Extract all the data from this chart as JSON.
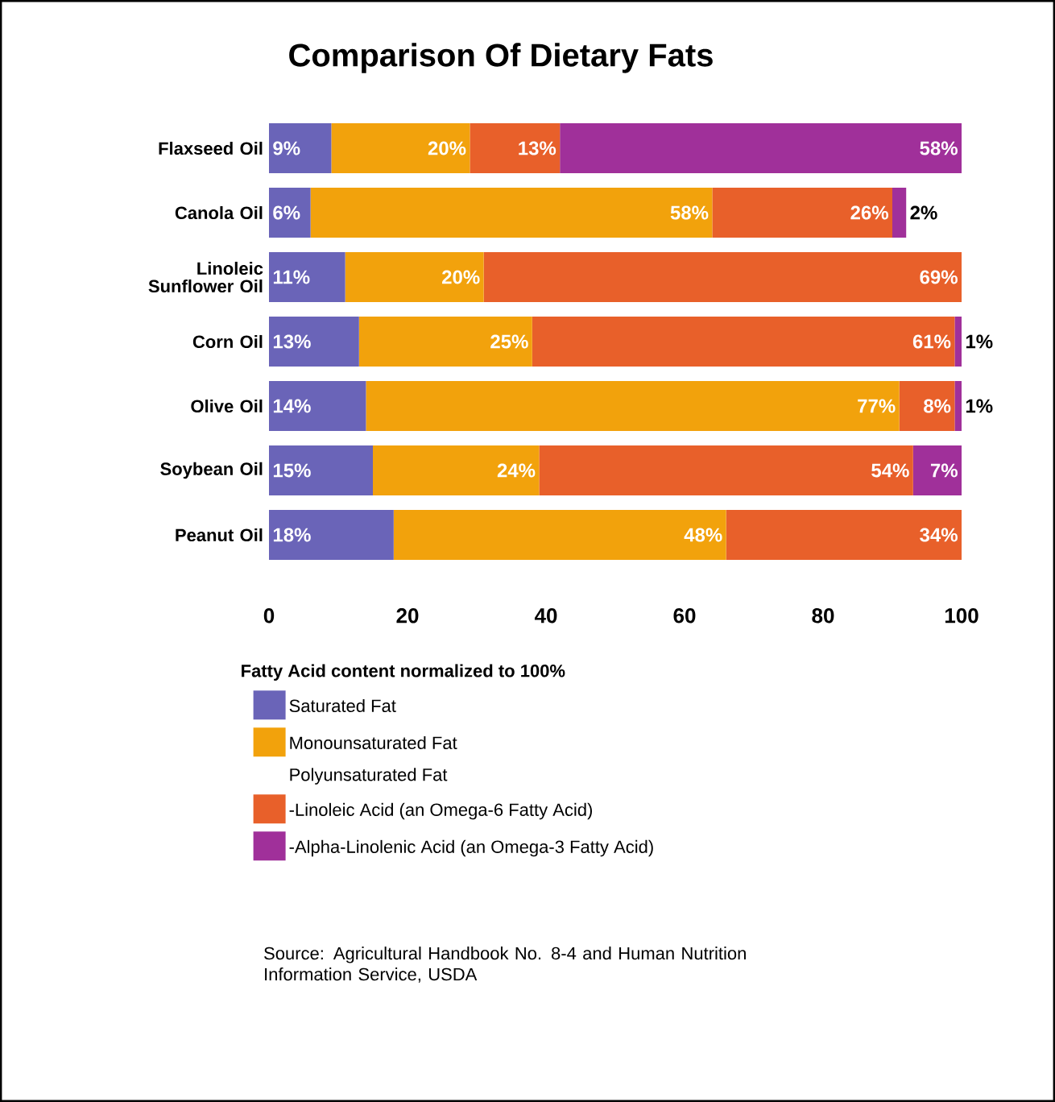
{
  "chart_data": {
    "type": "bar",
    "orientation": "horizontal",
    "stacked": true,
    "title": "Comparison Of Dietary Fats",
    "categories": [
      "Flaxseed Oil",
      "Canola Oil",
      "Linoleic Sunflower Oil",
      "Corn Oil",
      "Olive Oil",
      "Soybean Oil",
      "Peanut Oil"
    ],
    "series": [
      {
        "name": "Saturated Fat",
        "color": "#6a64b8",
        "values": [
          9,
          6,
          11,
          13,
          14,
          15,
          18
        ],
        "value_labels": [
          "9%",
          "6%",
          "11%",
          "13%",
          "14%",
          "15%",
          "18%"
        ]
      },
      {
        "name": "Monounsaturated Fat",
        "color": "#f2a20c",
        "values": [
          20,
          58,
          20,
          25,
          77,
          24,
          48
        ],
        "value_labels": [
          "20%",
          "58%",
          "20%",
          "25%",
          "77%",
          "24%",
          "48%"
        ]
      },
      {
        "name": "-Linoleic Acid (an Omega-6 Fatty Acid)",
        "color": "#e8602a",
        "values": [
          13,
          26,
          69,
          61,
          8,
          54,
          34
        ],
        "value_labels": [
          "13%",
          "26%",
          "69%",
          "61%",
          "8%",
          "54%",
          "34%"
        ]
      },
      {
        "name": "-Alpha-Linolenic Acid (an Omega-3 Fatty Acid)",
        "color": "#a0309a",
        "values": [
          58,
          2,
          null,
          1,
          1,
          7,
          null
        ],
        "value_labels": [
          "58%",
          "2%",
          null,
          "1%",
          "1%",
          "7%",
          null
        ]
      }
    ],
    "xlim": [
      0,
      100
    ],
    "xticks": [
      0,
      20,
      40,
      60,
      80,
      100
    ],
    "legend": "bottom",
    "legend_title": "Fatty Acid content normalized to 100%",
    "annotations": [
      "Polyunsaturated Fat",
      "Source: Agricultural Handbook No. 8-4 and Human Nutrition Information Service, USDA"
    ]
  }
}
